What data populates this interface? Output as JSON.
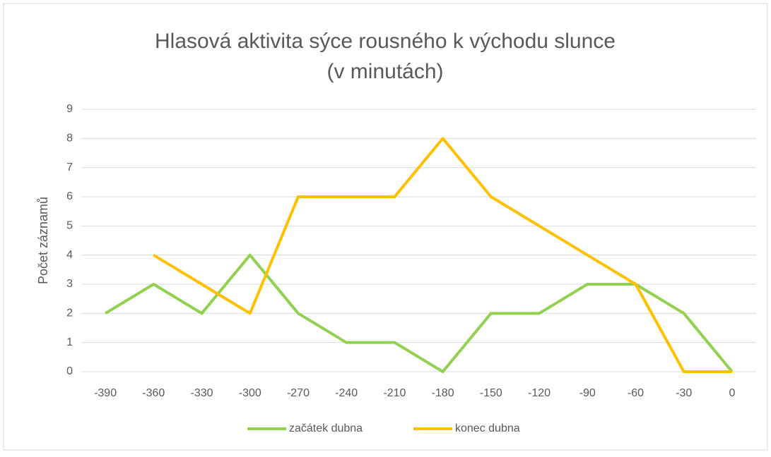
{
  "chart_data": {
    "type": "line",
    "title": [
      "Hlasová aktivita sýce rousného k východu slunce",
      "(v minutách)"
    ],
    "y_label": "Počet záznamů",
    "categories": [
      "-390",
      "-360",
      "-330",
      "-300",
      "-270",
      "-240",
      "-210",
      "-180",
      "-150",
      "-120",
      "-90",
      "-60",
      "-30",
      "0"
    ],
    "series": [
      {
        "name": "začátek dubna",
        "color": "#92d050",
        "values": [
          2,
          3,
          2,
          4,
          2,
          1,
          1,
          0,
          2,
          2,
          3,
          3,
          2,
          0
        ]
      },
      {
        "name": "konec dubna",
        "color": "#ffc000",
        "values": [
          null,
          4,
          3,
          2,
          6,
          6,
          6,
          8,
          6,
          5,
          4,
          3,
          0,
          0
        ]
      }
    ],
    "ylim": [
      0,
      9
    ],
    "yticks": [
      0,
      1,
      2,
      3,
      4,
      5,
      6,
      7,
      8,
      9
    ],
    "grid": true,
    "legend": "bottom"
  }
}
